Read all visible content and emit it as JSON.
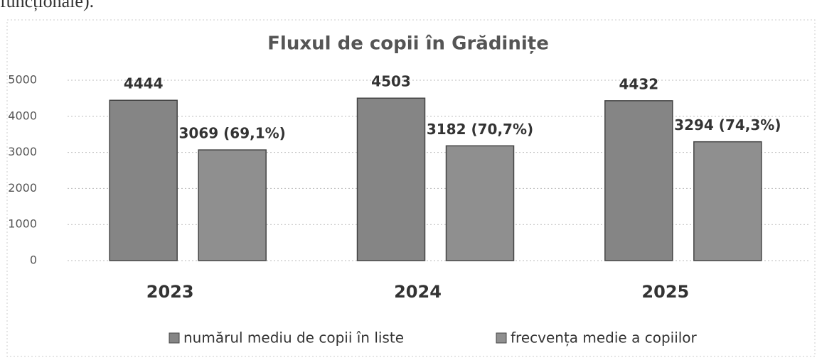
{
  "page_text": "funcționale).",
  "chart_data": {
    "type": "bar",
    "title": "Fluxul de copii în Grădinițe",
    "categories": [
      "2023",
      "2024",
      "2025"
    ],
    "series": [
      {
        "name": "numărul mediu de copii în liste",
        "color": "#858585",
        "values": [
          4444,
          4503,
          4432
        ]
      },
      {
        "name": "frecvența medie a copiilor",
        "color": "#8f8f8f",
        "values": [
          3069,
          3182,
          3294
        ],
        "value_labels": [
          "3069 (69,1%)",
          "3182 (70,7%)",
          "3294 (74,3%)"
        ]
      }
    ],
    "ylim": [
      0,
      5000
    ],
    "yticks": [
      0,
      1000,
      2000,
      3000,
      4000,
      5000
    ],
    "grid": true,
    "legend": "bottom"
  }
}
